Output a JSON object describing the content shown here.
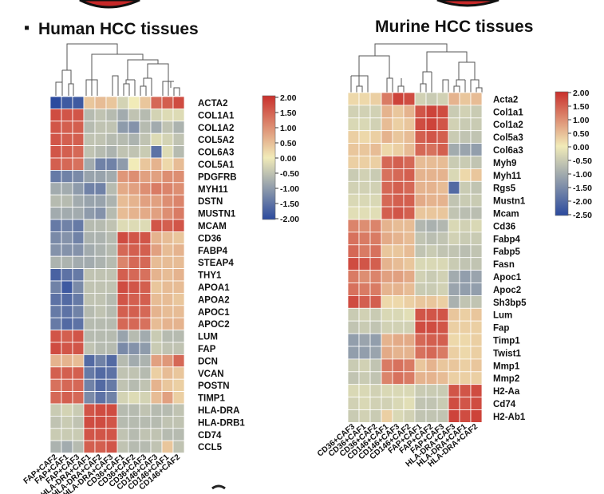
{
  "bullet": "▪",
  "chart_data": [
    {
      "type": "heatmap",
      "title": "Human HCC tissues",
      "columns": [
        "FAP+CAF2",
        "FAP+CAF1",
        "FAP+CAF3",
        "HLA-DRA+CAF1",
        "HLA-DRA+CAF2",
        "HLA-DRA+CAF3",
        "CD36+CAF1",
        "CD36+CAF2",
        "CD36+CAF3",
        "CD146+CAF3",
        "CD146+CAF1",
        "CD146+CAF2"
      ],
      "rows": [
        "ACTA2",
        "COL1A1",
        "COL1A2",
        "COL5A2",
        "COL6A3",
        "COL5A1",
        "PDGFRB",
        "MYH11",
        "DSTN",
        "MUSTN1",
        "MCAM",
        "CD36",
        "FABP4",
        "STEAP4",
        "THY1",
        "APOA1",
        "APOA2",
        "APOC1",
        "APOC2",
        "LUM",
        "FAP",
        "DCN",
        "VCAN",
        "POSTN",
        "TIMP1",
        "HLA-DRA",
        "HLA-DRB1",
        "CD74",
        "CCL5"
      ],
      "values": [
        [
          -2.0,
          -1.8,
          -1.8,
          0.4,
          0.5,
          0.4,
          -0.3,
          0.0,
          0.4,
          1.4,
          1.5,
          1.7
        ],
        [
          1.7,
          1.6,
          1.6,
          -0.6,
          -0.5,
          -0.6,
          -0.8,
          -0.5,
          -0.6,
          -0.3,
          -0.2,
          -0.2
        ],
        [
          1.6,
          1.5,
          1.5,
          -0.6,
          -0.5,
          -0.5,
          -1.0,
          -1.1,
          -0.6,
          -0.8,
          -0.5,
          -0.7
        ],
        [
          1.6,
          1.5,
          1.5,
          -0.5,
          -0.5,
          -0.6,
          -0.6,
          -0.7,
          -0.5,
          -0.2,
          -0.3,
          -0.5
        ],
        [
          1.6,
          1.5,
          1.4,
          -0.5,
          -0.6,
          -0.7,
          -0.5,
          -0.5,
          -0.4,
          -1.5,
          -0.2,
          -0.6
        ],
        [
          1.5,
          1.4,
          1.3,
          -0.8,
          -1.3,
          -1.3,
          -1.0,
          0.0,
          0.4,
          0.6,
          0.2,
          0.5
        ],
        [
          -1.4,
          -1.3,
          -1.2,
          -0.9,
          -0.9,
          -0.8,
          0.9,
          1.0,
          0.8,
          0.8,
          1.0,
          1.0
        ],
        [
          -0.8,
          -0.8,
          -1.0,
          -1.3,
          -1.3,
          -0.6,
          0.7,
          0.8,
          1.0,
          1.2,
          1.1,
          1.0
        ],
        [
          -0.6,
          -0.6,
          -0.8,
          -0.9,
          -0.9,
          -0.7,
          0.5,
          0.6,
          0.8,
          0.8,
          1.0,
          1.1
        ],
        [
          -0.8,
          -0.8,
          -0.8,
          -1.0,
          -1.1,
          -0.6,
          0.5,
          0.6,
          0.7,
          0.8,
          1.0,
          1.2
        ],
        [
          -1.4,
          -1.3,
          -1.4,
          -0.6,
          -0.6,
          -0.5,
          -0.2,
          -0.2,
          -0.2,
          1.6,
          1.5,
          1.6
        ],
        [
          -1.2,
          -1.1,
          -1.3,
          -0.7,
          -0.7,
          -0.6,
          1.7,
          1.6,
          1.6,
          0.6,
          0.5,
          0.4
        ],
        [
          -1.1,
          -1.1,
          -1.1,
          -0.8,
          -0.7,
          -0.6,
          1.4,
          1.5,
          1.5,
          0.8,
          0.5,
          0.6
        ],
        [
          -0.7,
          -0.7,
          -0.8,
          -0.8,
          -0.7,
          -0.6,
          1.1,
          1.4,
          1.4,
          0.5,
          0.5,
          0.5
        ],
        [
          -1.7,
          -1.5,
          -1.4,
          -0.5,
          -0.5,
          -0.5,
          1.5,
          1.4,
          1.3,
          0.6,
          0.5,
          0.6
        ],
        [
          -1.3,
          -1.8,
          -1.2,
          -0.5,
          -0.5,
          -0.5,
          1.7,
          1.6,
          1.5,
          0.4,
          0.5,
          0.5
        ],
        [
          -1.5,
          -1.6,
          -1.4,
          -0.5,
          -0.5,
          -0.6,
          1.6,
          1.5,
          1.5,
          0.5,
          0.5,
          0.4
        ],
        [
          -1.4,
          -1.5,
          -1.3,
          -0.6,
          -0.5,
          -0.6,
          1.5,
          1.5,
          1.4,
          0.6,
          0.5,
          0.5
        ],
        [
          -1.4,
          -1.6,
          -1.5,
          -0.6,
          -0.6,
          -0.6,
          1.4,
          1.4,
          1.3,
          0.5,
          0.6,
          0.6
        ],
        [
          1.6,
          1.5,
          1.6,
          -0.6,
          -0.6,
          -0.6,
          -0.9,
          -0.6,
          -0.8,
          -0.4,
          -0.6,
          -0.6
        ],
        [
          1.7,
          1.6,
          1.6,
          -0.5,
          -0.6,
          -0.6,
          -1.2,
          -1.1,
          -1.0,
          -0.4,
          -0.5,
          -0.5
        ],
        [
          0.6,
          0.6,
          0.5,
          -1.6,
          -1.3,
          -1.6,
          -0.6,
          -0.8,
          -0.7,
          0.8,
          0.9,
          1.4
        ],
        [
          1.5,
          1.5,
          1.5,
          -1.4,
          -1.6,
          -1.5,
          -0.5,
          -0.5,
          -0.6,
          0.3,
          0.5,
          0.4
        ],
        [
          1.3,
          1.4,
          1.4,
          -1.3,
          -1.6,
          -1.4,
          -0.5,
          -0.6,
          -0.5,
          0.6,
          0.4,
          0.3
        ],
        [
          1.4,
          1.5,
          1.4,
          -1.2,
          -1.5,
          -1.3,
          -0.3,
          -0.2,
          -0.3,
          0.5,
          0.8,
          0.3
        ],
        [
          -0.4,
          -0.3,
          -0.4,
          1.6,
          1.7,
          1.7,
          -0.6,
          -0.6,
          -0.5,
          -0.6,
          -0.6,
          -0.5
        ],
        [
          -0.5,
          -0.4,
          -0.5,
          1.7,
          1.7,
          1.6,
          -0.6,
          -0.6,
          -0.6,
          -0.6,
          -0.5,
          -0.5
        ],
        [
          -0.4,
          -0.4,
          -0.4,
          1.6,
          1.6,
          1.6,
          -0.5,
          -0.6,
          -0.5,
          -0.5,
          -0.6,
          -0.6
        ],
        [
          -0.7,
          -0.8,
          -0.6,
          1.5,
          1.5,
          1.6,
          -0.5,
          -0.6,
          -0.6,
          -0.5,
          0.4,
          -0.5
        ]
      ],
      "legend": {
        "ticks": [
          "2.00",
          "1.50",
          "1.00",
          "0.50",
          "0.00",
          "-0.50",
          "-1.00",
          "-1.50",
          "-2.00"
        ],
        "min": -2.0,
        "max": 2.0,
        "low_color": "#2b4a9e",
        "mid_color": "#f1ebb8",
        "high_color": "#c9302c"
      }
    },
    {
      "type": "heatmap",
      "title": "Murine HCC tissues",
      "columns": [
        "CD36+CAF3",
        "CD36+CAF1",
        "CD36+CAF2",
        "CD146+CAF1",
        "CD146+CAF3",
        "CD146+CAF2",
        "FAP+CAF1",
        "FAP+CAF2",
        "FAP+CAF3",
        "HLA-DRA+CAF3",
        "HLA-DRA+CAF1",
        "HLA-DRA+CAF2"
      ],
      "rows": [
        "Acta2",
        "Col1a1",
        "Col1a2",
        "Col5a3",
        "Col6a3",
        "Myh9",
        "Myh11",
        "Rgs5",
        "Mustn1",
        "Mcam",
        "Cd36",
        "Fabp4",
        "Fabp5",
        "Fasn",
        "Apoc1",
        "Apoc2",
        "Sh3bp5",
        "Lum",
        "Fap",
        "Timp1",
        "Twist1",
        "Mmp1",
        "Mmp2",
        "H2-Aa",
        "Cd74",
        "H2-Ab1"
      ],
      "values": [
        [
          0.2,
          0.2,
          0.3,
          1.2,
          1.8,
          1.7,
          -0.4,
          -0.5,
          -0.4,
          0.6,
          0.4,
          0.5
        ],
        [
          -0.4,
          -0.4,
          -0.4,
          0.6,
          0.4,
          0.6,
          1.6,
          1.8,
          1.7,
          -0.5,
          -0.4,
          -0.5
        ],
        [
          -0.3,
          -0.3,
          -0.4,
          0.5,
          0.3,
          0.4,
          1.7,
          1.8,
          1.6,
          -0.4,
          -0.5,
          -0.5
        ],
        [
          0.3,
          0.2,
          0.3,
          0.6,
          0.4,
          0.5,
          1.5,
          1.6,
          1.5,
          -0.5,
          -0.6,
          -0.6
        ],
        [
          0.4,
          0.4,
          0.5,
          0.2,
          0.3,
          0.5,
          1.4,
          1.3,
          1.5,
          -1.0,
          -1.1,
          -1.2
        ],
        [
          0.3,
          0.3,
          0.3,
          1.4,
          1.5,
          1.4,
          0.5,
          0.5,
          0.5,
          -0.5,
          -0.5,
          -0.6
        ],
        [
          -0.5,
          -0.4,
          -0.5,
          1.3,
          1.4,
          1.5,
          0.6,
          0.6,
          0.6,
          -0.3,
          0.2,
          0.4
        ],
        [
          -0.4,
          -0.4,
          -0.4,
          1.4,
          1.5,
          1.4,
          0.6,
          0.6,
          0.5,
          -2.0,
          -0.5,
          -0.6
        ],
        [
          -0.3,
          -0.3,
          -0.3,
          1.4,
          1.5,
          1.5,
          0.7,
          0.6,
          0.6,
          -0.6,
          -0.5,
          -0.5
        ],
        [
          -0.2,
          -0.2,
          -0.2,
          1.5,
          1.6,
          1.5,
          0.4,
          0.4,
          0.4,
          -0.6,
          -0.7,
          -0.7
        ],
        [
          1.1,
          1.0,
          1.1,
          0.6,
          0.5,
          0.5,
          -0.8,
          -0.9,
          -0.8,
          -0.3,
          -0.4,
          -0.3
        ],
        [
          1.3,
          1.2,
          1.2,
          0.7,
          0.6,
          0.5,
          -0.6,
          -0.7,
          -0.6,
          -0.4,
          -0.5,
          -0.5
        ],
        [
          1.4,
          1.2,
          1.3,
          0.4,
          0.4,
          0.5,
          -0.6,
          -0.5,
          -0.6,
          -0.6,
          -0.7,
          -0.6
        ],
        [
          1.7,
          1.6,
          1.5,
          0.6,
          0.5,
          0.4,
          -0.3,
          -0.3,
          -0.3,
          -0.5,
          -0.6,
          -0.6
        ],
        [
          1.2,
          1.0,
          1.1,
          0.8,
          0.8,
          0.7,
          -0.4,
          -0.5,
          -0.4,
          -1.0,
          -1.2,
          -1.1
        ],
        [
          1.3,
          1.2,
          1.2,
          0.6,
          0.6,
          0.5,
          -0.5,
          -0.5,
          -0.4,
          -1.1,
          -1.2,
          -1.2
        ],
        [
          1.7,
          1.5,
          1.5,
          0.2,
          0.2,
          0.3,
          0.4,
          0.4,
          0.3,
          -0.9,
          -0.6,
          -0.6
        ],
        [
          -0.5,
          -0.4,
          -0.5,
          -0.3,
          -0.3,
          -0.2,
          1.6,
          1.6,
          1.6,
          0.4,
          0.3,
          0.4
        ],
        [
          -0.6,
          -0.5,
          -0.6,
          -0.4,
          -0.4,
          -0.4,
          1.7,
          1.7,
          1.6,
          0.3,
          0.3,
          0.3
        ],
        [
          -1.2,
          -1.1,
          -1.2,
          0.6,
          0.7,
          0.7,
          1.4,
          1.5,
          1.5,
          0.2,
          0.2,
          0.3
        ],
        [
          -1.2,
          -1.2,
          -1.1,
          0.7,
          0.6,
          0.6,
          1.3,
          1.4,
          1.2,
          0.3,
          0.2,
          0.3
        ],
        [
          -0.5,
          -0.4,
          -0.6,
          1.2,
          1.3,
          1.2,
          0.4,
          0.6,
          0.4,
          0.4,
          0.3,
          0.4
        ],
        [
          -0.6,
          -0.5,
          -0.6,
          1.1,
          1.3,
          1.2,
          0.6,
          0.6,
          0.5,
          0.3,
          0.3,
          0.3
        ],
        [
          -0.3,
          -0.3,
          -0.4,
          -0.3,
          -0.3,
          -0.3,
          -0.5,
          -0.5,
          -0.5,
          1.6,
          1.6,
          1.7
        ],
        [
          -0.4,
          -0.3,
          -0.4,
          -0.4,
          -0.3,
          -0.2,
          -0.6,
          -0.6,
          -0.5,
          1.7,
          1.6,
          1.7
        ],
        [
          -0.5,
          -0.4,
          -0.5,
          0.3,
          -0.3,
          -0.4,
          -0.6,
          -0.6,
          -0.6,
          1.8,
          1.7,
          1.8
        ]
      ],
      "legend": {
        "ticks": [
          "2.00",
          "1.50",
          "1.00",
          "0.50",
          "0.00",
          "-0.50",
          "-1.00",
          "-1.50",
          "-2.00",
          "-2.50"
        ],
        "min": -2.5,
        "max": 2.0,
        "low_color": "#2b4a9e",
        "mid_color": "#f1ebb8",
        "high_color": "#c9302c"
      }
    }
  ]
}
